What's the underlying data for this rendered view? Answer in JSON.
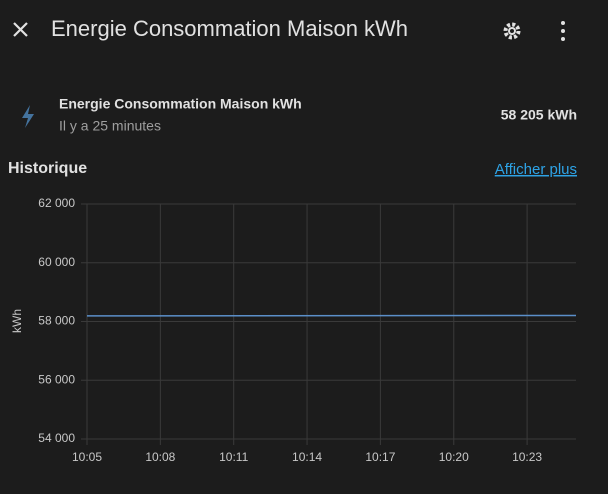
{
  "header": {
    "title": "Energie Consommation Maison kWh"
  },
  "entity": {
    "name": "Energie Consommation Maison kWh",
    "last_changed": "Il y a 25 minutes",
    "state": "58 205 kWh"
  },
  "history": {
    "title": "Historique",
    "link": "Afficher plus"
  },
  "chart_data": {
    "type": "line",
    "y_label": "kWh",
    "x": [
      "10:05",
      "10:25"
    ],
    "series": [
      {
        "name": "Energie Consommation Maison kWh",
        "color": "#5b8fc9",
        "values": [
          58190,
          58205
        ]
      }
    ],
    "xlim": [
      "10:05",
      "10:25"
    ],
    "xticks": [
      "10:05",
      "10:08",
      "10:11",
      "10:14",
      "10:17",
      "10:20",
      "10:23"
    ],
    "ylim": [
      54000,
      62000
    ],
    "yticks": [
      {
        "value": 54000,
        "label": "54 000"
      },
      {
        "value": 56000,
        "label": "56 000"
      },
      {
        "value": 58000,
        "label": "58 000"
      },
      {
        "value": 60000,
        "label": "60 000"
      },
      {
        "value": 62000,
        "label": "62 000"
      }
    ],
    "grid": true
  }
}
